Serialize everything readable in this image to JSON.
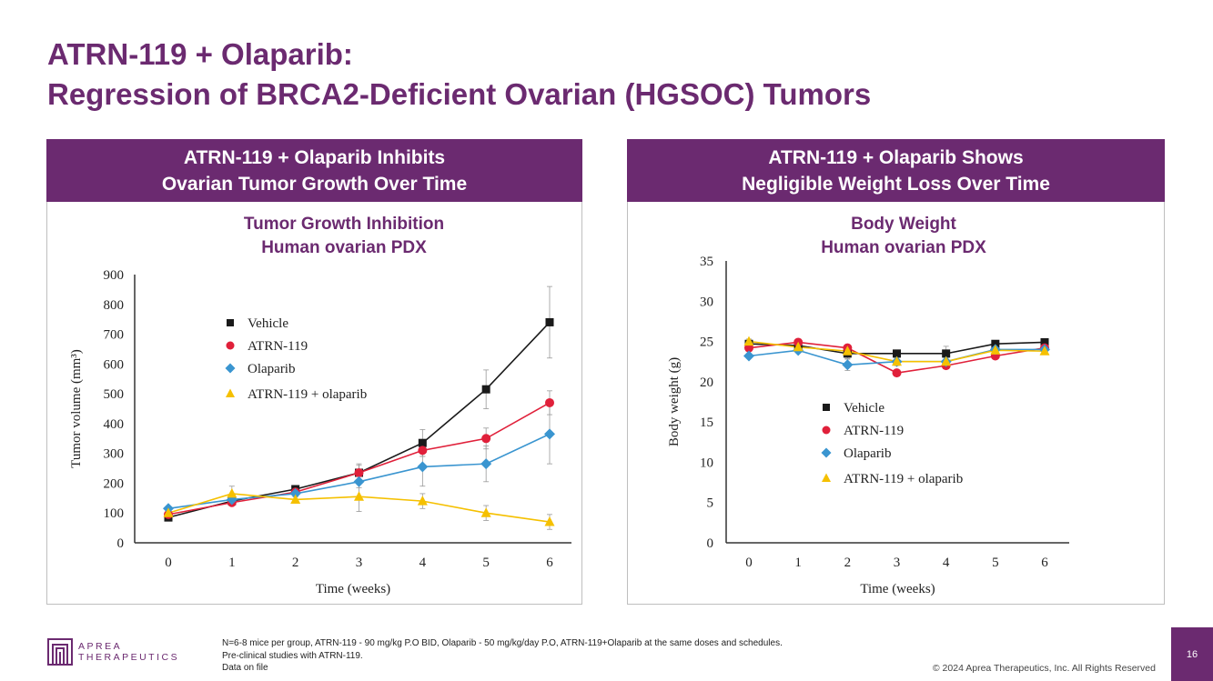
{
  "title": {
    "line1": "ATRN-119 + Olaparib:",
    "line2": "Regression of BRCA2-Deficient Ovarian (HGSOC) Tumors"
  },
  "panels": [
    {
      "header1": "ATRN-119 + Olaparib Inhibits",
      "header2": "Ovarian Tumor Growth Over Time"
    },
    {
      "header1": "ATRN-119 + Olaparib Shows",
      "header2": "Negligible Weight Loss Over Time"
    }
  ],
  "colors": {
    "brand": "#6b2a70",
    "Vehicle": "#1a1a1a",
    "ATRN-119": "#e0203a",
    "Olaparib": "#3a95d0",
    "ATRN-119 + olaparib": "#f5c000"
  },
  "chart_data": [
    {
      "type": "line",
      "title": "Tumor Growth Inhibition",
      "subtitle": "Human ovarian PDX",
      "xlabel": "Time (weeks)",
      "ylabel": "Tumor volume (mm³)",
      "x": [
        0,
        1,
        2,
        3,
        4,
        5,
        6
      ],
      "ylim": [
        0,
        900
      ],
      "yticks": [
        0,
        100,
        200,
        300,
        400,
        500,
        600,
        700,
        800,
        900
      ],
      "legend": "center-left",
      "grid": false,
      "series": [
        {
          "name": "Vehicle",
          "marker": "square",
          "values": [
            85,
            140,
            180,
            235,
            335,
            515,
            740
          ],
          "errors": [
            5,
            8,
            10,
            30,
            45,
            65,
            120
          ]
        },
        {
          "name": "ATRN-119",
          "marker": "circle",
          "values": [
            95,
            135,
            170,
            235,
            310,
            350,
            470
          ],
          "errors": [
            5,
            8,
            10,
            25,
            20,
            35,
            40
          ]
        },
        {
          "name": "Olaparib",
          "marker": "diamond",
          "values": [
            115,
            145,
            165,
            205,
            255,
            265,
            365
          ],
          "errors": [
            5,
            8,
            10,
            20,
            65,
            60,
            100
          ]
        },
        {
          "name": "ATRN-119 + olaparib",
          "marker": "triangle",
          "values": [
            100,
            165,
            145,
            155,
            140,
            100,
            70
          ],
          "errors": [
            5,
            25,
            10,
            50,
            25,
            25,
            25
          ]
        }
      ]
    },
    {
      "type": "line",
      "title": "Body Weight",
      "subtitle": "Human ovarian PDX",
      "xlabel": "Time (weeks)",
      "ylabel": "Body weight (g)",
      "x": [
        0,
        1,
        2,
        3,
        4,
        5,
        6
      ],
      "ylim": [
        0,
        35
      ],
      "yticks": [
        0,
        5,
        10,
        15,
        20,
        25,
        30,
        35
      ],
      "legend": "center",
      "grid": false,
      "series": [
        {
          "name": "Vehicle",
          "marker": "square",
          "values": [
            24.7,
            24.5,
            23.5,
            23.5,
            23.5,
            24.7,
            24.9
          ],
          "errors": [
            0.3,
            0.3,
            0.6,
            0.3,
            0.9,
            0.3,
            0.3
          ]
        },
        {
          "name": "ATRN-119",
          "marker": "circle",
          "values": [
            24.2,
            24.9,
            24.2,
            21.1,
            22.0,
            23.2,
            24.2
          ],
          "errors": [
            0.3,
            0.3,
            0.3,
            0.3,
            0.3,
            0.3,
            0.3
          ]
        },
        {
          "name": "Olaparib",
          "marker": "diamond",
          "values": [
            23.2,
            23.9,
            22.1,
            22.5,
            22.5,
            24.0,
            24.0
          ],
          "errors": [
            0.3,
            0.3,
            0.7,
            0.5,
            0.5,
            0.3,
            0.3
          ]
        },
        {
          "name": "ATRN-119 + olaparib",
          "marker": "triangle",
          "values": [
            25.0,
            24.3,
            23.8,
            22.5,
            22.5,
            23.9,
            23.8
          ],
          "errors": [
            0.3,
            0.3,
            0.3,
            0.3,
            0.3,
            0.3,
            0.3
          ]
        }
      ]
    }
  ],
  "footer": {
    "note1": "N=6-8 mice per group, ATRN-119 - 90 mg/kg P.O BID, Olaparib - 50 mg/kg/day P.O, ATRN-119+Olaparib at the same doses and schedules.",
    "note2": "Pre-clinical studies with ATRN-119.",
    "note3": "Data on file",
    "copyright": "© 2024 Aprea Therapeutics, Inc. All Rights Reserved",
    "page": "16",
    "logo1": "APREA",
    "logo2": "THERAPEUTICS"
  }
}
